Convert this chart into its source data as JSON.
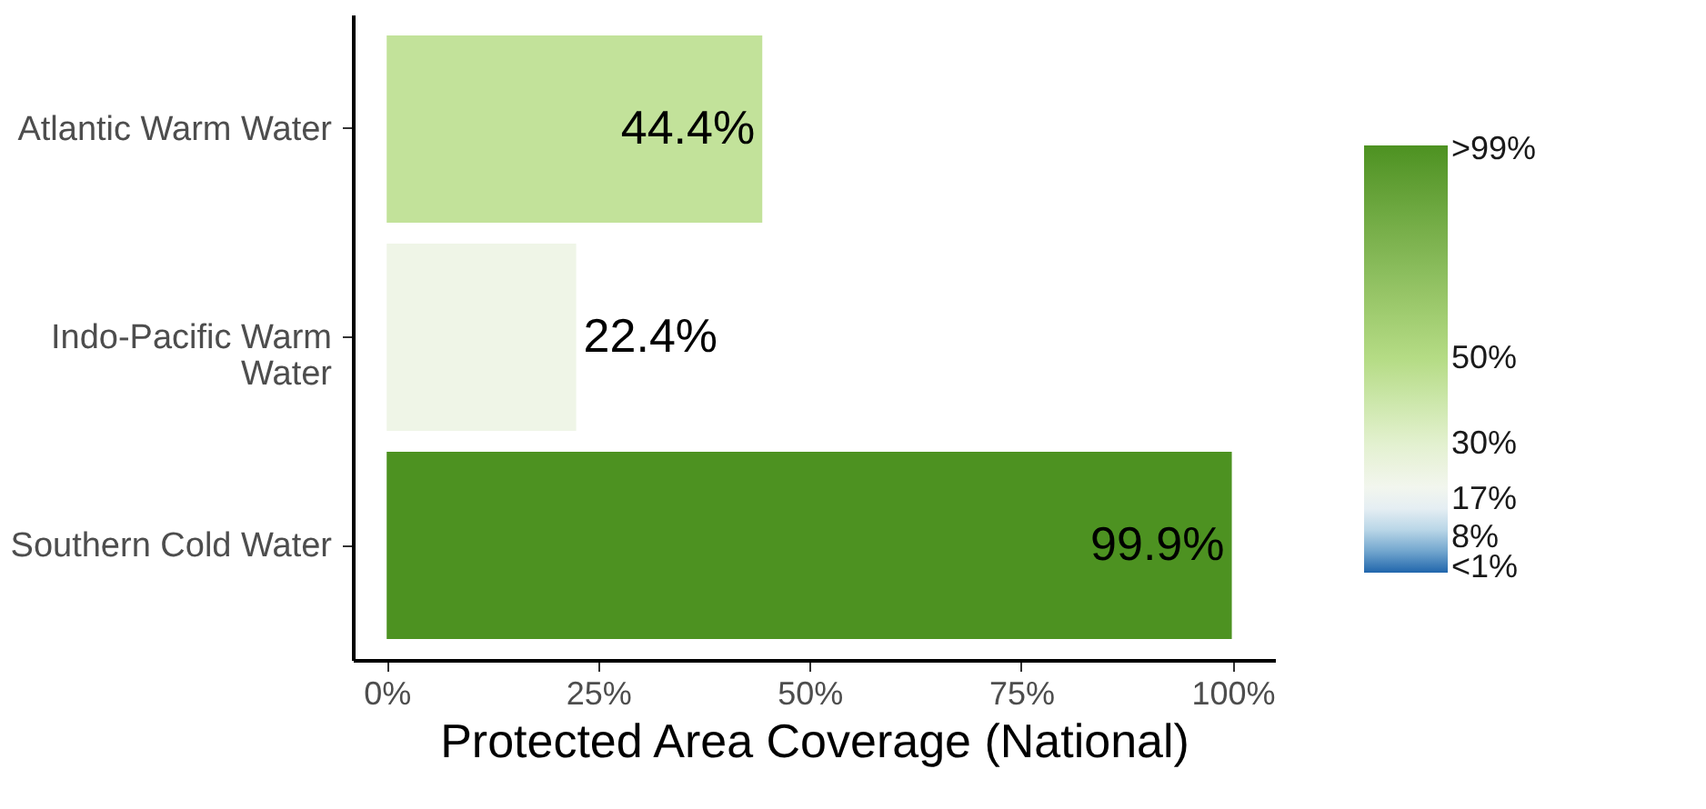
{
  "chart_data": {
    "type": "bar",
    "orientation": "horizontal",
    "xlabel": "Protected Area Coverage (National)",
    "categories": [
      "Atlantic Warm Water",
      "Indo-Pacific Warm Water",
      "Southern Cold Water"
    ],
    "values": [
      44.4,
      22.4,
      99.9
    ],
    "value_labels": [
      "44.4%",
      "22.4%",
      "99.9%"
    ],
    "xlim": [
      -4,
      105
    ],
    "xticks": [
      {
        "value": 0,
        "label": "0%"
      },
      {
        "value": 25,
        "label": "25%"
      },
      {
        "value": 50,
        "label": "50%"
      },
      {
        "value": 75,
        "label": "75%"
      },
      {
        "value": 100,
        "label": "100%"
      }
    ],
    "clim": [
      0,
      100
    ],
    "cticks": [
      {
        "value": 1,
        "label": "<1%"
      },
      {
        "value": 8,
        "label": "8%"
      },
      {
        "value": 17,
        "label": "17%"
      },
      {
        "value": 30,
        "label": "30%"
      },
      {
        "value": 50,
        "label": "50%"
      },
      {
        "value": 99,
        "label": ">99%"
      }
    ],
    "grid": false
  }
}
